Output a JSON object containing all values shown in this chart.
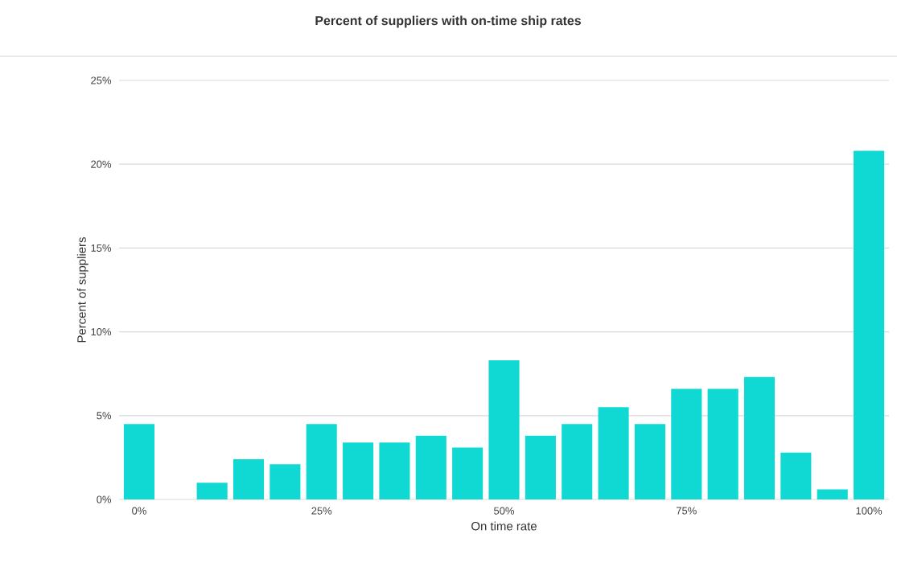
{
  "chart_data": {
    "type": "bar",
    "title": "Percent of suppliers with on-time ship rates",
    "xlabel": "On time rate",
    "ylabel": "Percent of suppliers",
    "categories": [
      "0%",
      null,
      null,
      null,
      null,
      "25%",
      null,
      null,
      null,
      null,
      "50%",
      null,
      null,
      null,
      null,
      "75%",
      null,
      null,
      null,
      null,
      "100%"
    ],
    "values": [
      4.5,
      0,
      1.0,
      2.4,
      2.1,
      4.5,
      3.4,
      3.4,
      3.8,
      3.1,
      8.3,
      3.8,
      4.5,
      5.5,
      4.5,
      6.6,
      6.6,
      7.3,
      2.8,
      0.6,
      20.8
    ],
    "color": "#10d9d4",
    "ylim": [
      0,
      25
    ],
    "yticks": [
      {
        "value": 0,
        "label": "0%"
      },
      {
        "value": 5,
        "label": "5%"
      },
      {
        "value": 10,
        "label": "10%"
      },
      {
        "value": 15,
        "label": "15%"
      },
      {
        "value": 20,
        "label": "20%"
      },
      {
        "value": 25,
        "label": "25%"
      }
    ],
    "grid": "y"
  }
}
